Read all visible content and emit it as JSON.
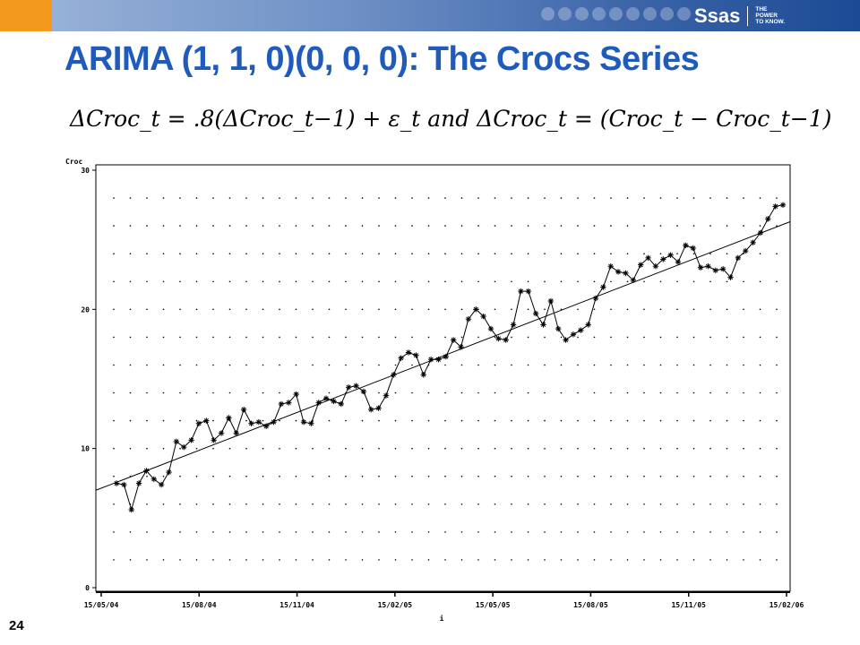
{
  "slide": {
    "title": "ARIMA (1, 1, 0)(0, 0, 0): The Crocs Series",
    "equation": "ΔCroc_t = .8(ΔCroc_t−1) + ε_t  and  ΔCroc_t = (Croc_t − Croc_t−1)",
    "page_number": "24",
    "logo_text": "Ssas",
    "logo_tagline": [
      "THE",
      "POWER",
      "TO KNOW."
    ],
    "colors": {
      "title": "#1f5bbd",
      "orange": "#f39a1c",
      "bar_dark": "#1c4a94"
    }
  },
  "chart_data": {
    "type": "line",
    "ylabel": "Croc",
    "xlabel_mark": "i",
    "ylim": [
      0,
      30
    ],
    "yticks": [
      0,
      10,
      20,
      30
    ],
    "xticks": [
      "15/05/04",
      "15/08/04",
      "15/11/04",
      "15/02/05",
      "15/05/05",
      "15/08/05",
      "15/11/05",
      "15/02/06"
    ],
    "grid": "dotted",
    "series": [
      {
        "marker": "asterisk",
        "values": [
          7.5,
          7.4,
          5.6,
          7.5,
          8.4,
          7.8,
          7.4,
          8.3,
          10.5,
          10.1,
          10.6,
          11.8,
          12.0,
          10.6,
          11.1,
          12.2,
          11.1,
          12.8,
          11.8,
          11.9,
          11.6,
          11.9,
          13.2,
          13.3,
          13.9,
          11.9,
          11.8,
          13.3,
          13.6,
          13.4,
          13.2,
          14.4,
          14.5,
          14.1,
          12.8,
          12.9,
          13.8,
          15.3,
          16.5,
          16.9,
          16.7,
          15.3,
          16.4,
          16.4,
          16.6,
          17.8,
          17.3,
          19.3,
          20.0,
          19.5,
          18.6,
          17.9,
          17.8,
          18.9,
          21.3,
          21.3,
          19.7,
          18.9,
          20.6,
          18.6,
          17.8,
          18.2,
          18.5,
          18.9,
          20.8,
          21.6,
          23.1,
          22.7,
          22.6,
          22.1,
          23.2,
          23.7,
          23.1,
          23.6,
          23.9,
          23.4,
          24.6,
          24.4,
          23.0,
          23.1,
          22.8,
          22.9,
          22.3,
          23.7,
          24.2,
          24.8,
          25.5,
          26.5,
          27.4,
          27.5
        ]
      }
    ],
    "trend": {
      "start": 7.0,
      "end": 26.3
    }
  }
}
